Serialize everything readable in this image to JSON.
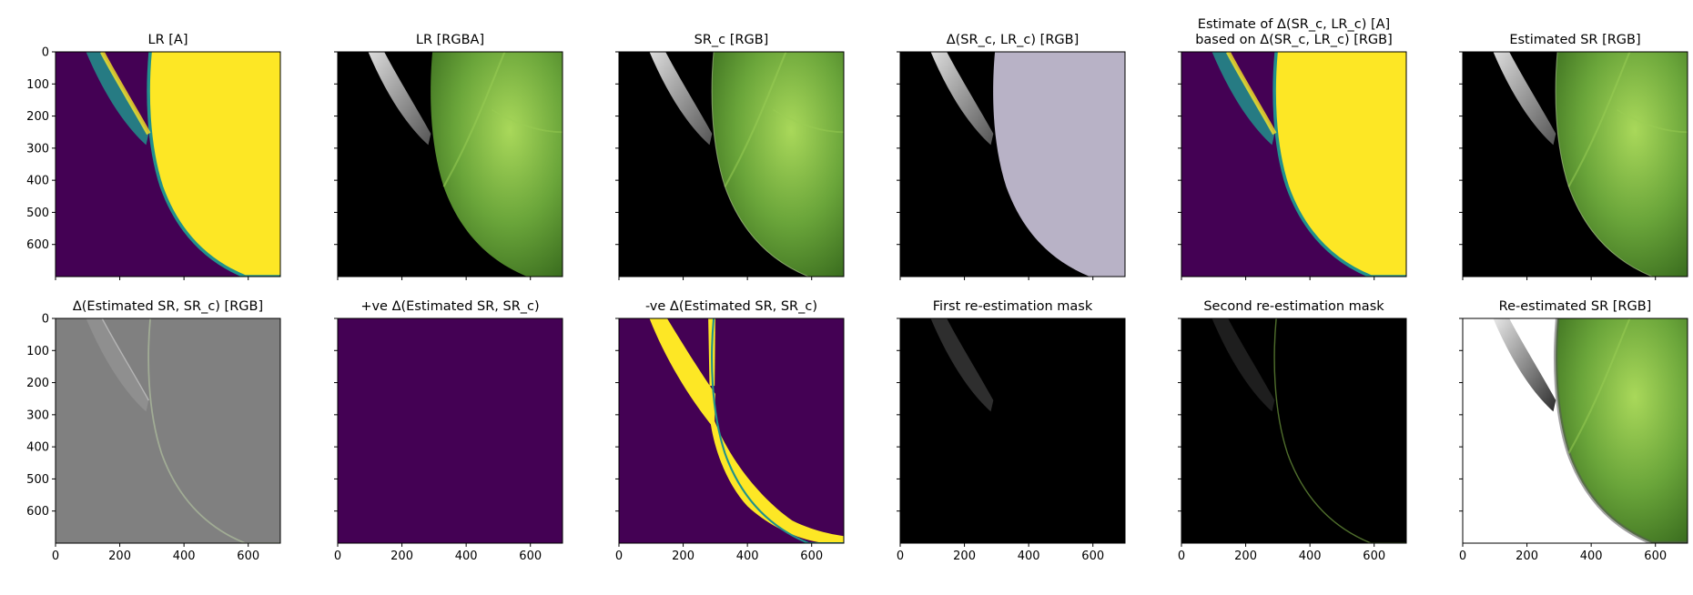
{
  "chart_data": {
    "type": "image-grid",
    "x_ticks": [
      0,
      200,
      400,
      600
    ],
    "y_ticks": [
      0,
      100,
      200,
      300,
      400,
      500,
      600
    ],
    "xlim": [
      0,
      700
    ],
    "ylim": [
      700,
      0
    ],
    "panels": [
      {
        "title": [
          "LR [A]"
        ],
        "kind": "alpha",
        "show_yticklabels": true,
        "show_xticklabels": false
      },
      {
        "title": [
          "LR [RGBA]"
        ],
        "kind": "rgb-blocky",
        "show_yticklabels": false,
        "show_xticklabels": false
      },
      {
        "title": [
          "SR_c [RGB]"
        ],
        "kind": "rgb",
        "show_yticklabels": false,
        "show_xticklabels": false
      },
      {
        "title": [
          "Δ(SR_c, LR_c) [RGB]"
        ],
        "kind": "lavender",
        "show_yticklabels": false,
        "show_xticklabels": false
      },
      {
        "title": [
          "Estimate of Δ(SR_c, LR_c) [A]",
          "based on Δ(SR_c, LR_c) [RGB]"
        ],
        "kind": "alpha",
        "show_yticklabels": false,
        "show_xticklabels": false
      },
      {
        "title": [
          "Estimated SR [RGB]"
        ],
        "kind": "rgb",
        "show_yticklabels": false,
        "show_xticklabels": false
      },
      {
        "title": [
          "Δ(Estimated SR, SR_c) [RGB]"
        ],
        "kind": "gray-diff",
        "show_yticklabels": true,
        "show_xticklabels": true
      },
      {
        "title": [
          "+ve Δ(Estimated SR, SR_c)"
        ],
        "kind": "flat-purple",
        "show_yticklabels": false,
        "show_xticklabels": true
      },
      {
        "title": [
          "-ve Δ(Estimated SR, SR_c)"
        ],
        "kind": "neg-mask",
        "show_yticklabels": false,
        "show_xticklabels": true
      },
      {
        "title": [
          "First re-estimation mask"
        ],
        "kind": "mask1",
        "show_yticklabels": false,
        "show_xticklabels": true
      },
      {
        "title": [
          "Second re-estimation mask"
        ],
        "kind": "mask2",
        "show_yticklabels": false,
        "show_xticklabels": true
      },
      {
        "title": [
          "Re-estimated SR [RGB]"
        ],
        "kind": "rgb-white",
        "show_yticklabels": false,
        "show_xticklabels": true
      }
    ]
  },
  "colors": {
    "viridis_low": "#440154",
    "viridis_high": "#fde725",
    "viridis_mid": "#21918c",
    "leaf_light": "#a9d85a",
    "leaf_mid": "#6aa53a",
    "leaf_dark": "#3b6e1f",
    "lavender": "#b8b2c6",
    "diff_gray": "#808080"
  }
}
